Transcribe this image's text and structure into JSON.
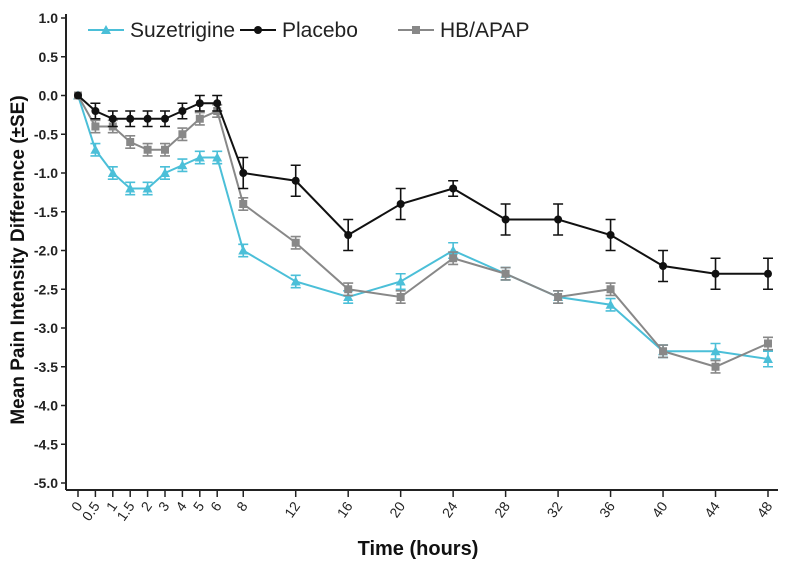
{
  "chart_data": {
    "type": "line",
    "title": "",
    "xlabel": "Time (hours)",
    "ylabel": "Mean Pain Intensity Difference (±SE)",
    "ylim": [
      -5.0,
      1.0
    ],
    "yticks": [
      "1.0",
      "0.5",
      "0.0",
      "-0.5",
      "-1.0",
      "-1.5",
      "-2.0",
      "-2.5",
      "-3.0",
      "-3.5",
      "-4.0",
      "-4.5",
      "-5.0"
    ],
    "x": [
      "0",
      "0.5",
      "1",
      "1.5",
      "2",
      "3",
      "4",
      "5",
      "6",
      "8",
      "12",
      "16",
      "20",
      "24",
      "28",
      "32",
      "36",
      "40",
      "44",
      "48"
    ],
    "grid": false,
    "legend": "top",
    "series": [
      {
        "name": "Suzetrigine",
        "color": "#4bbfd8",
        "marker": "triangle",
        "values": [
          0,
          -0.7,
          -1.0,
          -1.2,
          -1.2,
          -1.0,
          -0.9,
          -0.8,
          -0.8,
          -2.0,
          -2.4,
          -2.6,
          -2.4,
          -2.0,
          -2.3,
          -2.6,
          -2.7,
          -3.3,
          -3.3,
          -3.4
        ],
        "se": [
          0,
          0.08,
          0.08,
          0.08,
          0.08,
          0.08,
          0.08,
          0.08,
          0.08,
          0.08,
          0.08,
          0.08,
          0.1,
          0.1,
          0.08,
          0.08,
          0.08,
          0.08,
          0.1,
          0.1
        ]
      },
      {
        "name": "Placebo",
        "color": "#111111",
        "marker": "circle",
        "values": [
          0,
          -0.2,
          -0.3,
          -0.3,
          -0.3,
          -0.3,
          -0.2,
          -0.1,
          -0.1,
          -1.0,
          -1.1,
          -1.8,
          -1.4,
          -1.2,
          -1.6,
          -1.6,
          -1.8,
          -2.2,
          -2.3,
          -2.3
        ],
        "se": [
          0,
          0.1,
          0.1,
          0.1,
          0.1,
          0.1,
          0.1,
          0.1,
          0.1,
          0.2,
          0.2,
          0.2,
          0.2,
          0.1,
          0.2,
          0.2,
          0.2,
          0.2,
          0.2,
          0.2
        ]
      },
      {
        "name": "HB/APAP",
        "color": "#888888",
        "marker": "square",
        "values": [
          0,
          -0.4,
          -0.4,
          -0.6,
          -0.7,
          -0.7,
          -0.5,
          -0.3,
          -0.2,
          -1.4,
          -1.9,
          -2.5,
          -2.6,
          -2.1,
          -2.3,
          -2.6,
          -2.5,
          -3.3,
          -3.5,
          -3.2
        ],
        "se": [
          0,
          0.08,
          0.08,
          0.08,
          0.08,
          0.08,
          0.08,
          0.08,
          0.08,
          0.08,
          0.08,
          0.08,
          0.08,
          0.08,
          0.08,
          0.08,
          0.08,
          0.08,
          0.08,
          0.08
        ]
      }
    ]
  }
}
